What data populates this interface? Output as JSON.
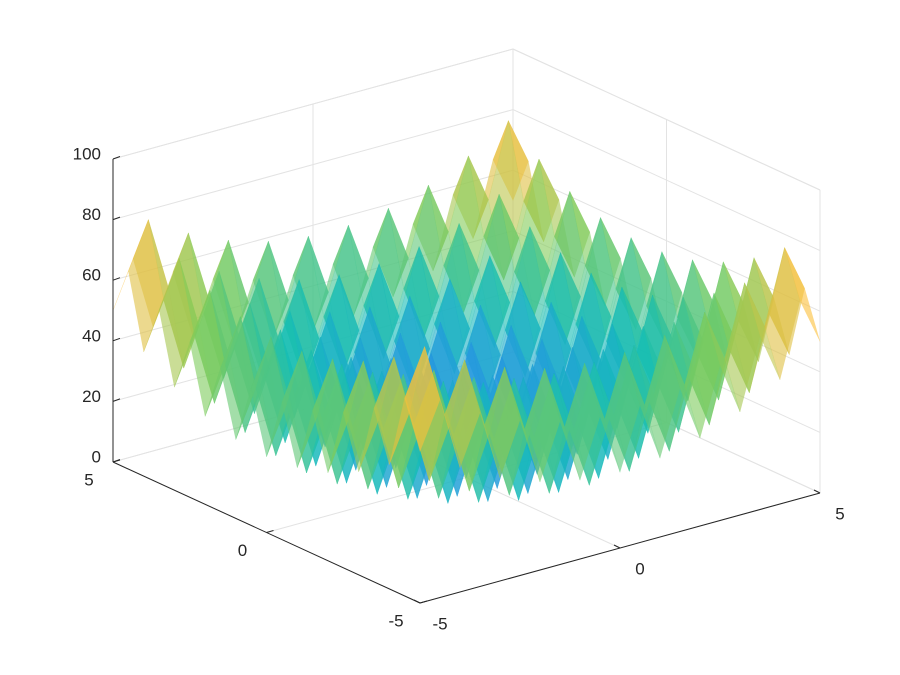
{
  "chart_data": {
    "type": "surface",
    "x": [
      -5,
      -4.5,
      -4,
      -3.5,
      -3,
      -2.5,
      -2,
      -1.5,
      -1,
      -0.5,
      0,
      0.5,
      1,
      1.5,
      2,
      2.5,
      3,
      3.5,
      4,
      4.5,
      5
    ],
    "y": [
      -5,
      -4.5,
      -4,
      -3.5,
      -3,
      -2.5,
      -2,
      -1.5,
      -1,
      -0.5,
      0,
      0.5,
      1,
      1.5,
      2,
      2.5,
      3,
      3.5,
      4,
      4.5,
      5
    ],
    "z": [
      [
        50,
        65.25,
        41,
        57.25,
        34,
        51.25,
        29,
        47.25,
        26,
        45.25,
        25,
        45.25,
        26,
        47.25,
        29,
        51.25,
        34,
        57.25,
        41,
        65.25,
        50
      ],
      [
        65.25,
        80.5,
        56.25,
        72.5,
        49.25,
        66.5,
        44.25,
        62.5,
        41.25,
        60.5,
        40.25,
        60.5,
        41.25,
        62.5,
        44.25,
        66.5,
        49.25,
        72.5,
        56.25,
        80.5,
        65.25
      ],
      [
        41,
        56.25,
        32,
        48.25,
        25,
        42.25,
        20,
        38.25,
        17,
        36.25,
        16,
        36.25,
        17,
        38.25,
        20,
        42.25,
        25,
        48.25,
        32,
        56.25,
        41
      ],
      [
        57.25,
        72.5,
        48.25,
        64.5,
        41.25,
        58.5,
        36.25,
        54.5,
        33.25,
        52.5,
        32.25,
        52.5,
        33.25,
        54.5,
        36.25,
        58.5,
        41.25,
        64.5,
        48.25,
        72.5,
        57.25
      ],
      [
        34,
        49.25,
        25,
        41.25,
        18,
        35.25,
        13,
        31.25,
        10,
        29.25,
        9,
        29.25,
        10,
        31.25,
        13,
        35.25,
        18,
        41.25,
        25,
        49.25,
        34
      ],
      [
        51.25,
        66.5,
        42.25,
        58.5,
        35.25,
        52.5,
        30.25,
        48.5,
        27.25,
        46.5,
        26.25,
        46.5,
        27.25,
        48.5,
        30.25,
        52.5,
        35.25,
        58.5,
        42.25,
        66.5,
        51.25
      ],
      [
        29,
        44.25,
        20,
        36.25,
        13,
        30.25,
        8,
        26.25,
        5,
        24.25,
        4,
        24.25,
        5,
        26.25,
        8,
        30.25,
        13,
        36.25,
        20,
        44.25,
        29
      ],
      [
        47.25,
        62.5,
        38.25,
        54.5,
        31.25,
        48.5,
        26.25,
        44.5,
        23.25,
        42.5,
        22.25,
        42.5,
        23.25,
        44.5,
        26.25,
        48.5,
        31.25,
        54.5,
        38.25,
        62.5,
        47.25
      ],
      [
        26,
        41.25,
        17,
        33.25,
        10,
        27.25,
        5,
        23.25,
        2,
        21.25,
        1,
        21.25,
        2,
        23.25,
        5,
        27.25,
        10,
        33.25,
        17,
        41.25,
        26
      ],
      [
        45.25,
        60.5,
        36.25,
        52.5,
        29.25,
        46.5,
        24.25,
        42.5,
        21.25,
        40.5,
        20.25,
        40.5,
        21.25,
        42.5,
        24.25,
        46.5,
        29.25,
        52.5,
        36.25,
        60.5,
        45.25
      ],
      [
        25,
        40.25,
        16,
        32.25,
        9,
        26.25,
        4,
        22.25,
        1,
        20.25,
        0,
        20.25,
        1,
        22.25,
        4,
        26.25,
        9,
        32.25,
        16,
        40.25,
        25
      ],
      [
        45.25,
        60.5,
        36.25,
        52.5,
        29.25,
        46.5,
        24.25,
        42.5,
        21.25,
        40.5,
        20.25,
        40.5,
        21.25,
        42.5,
        24.25,
        46.5,
        29.25,
        52.5,
        36.25,
        60.5,
        45.25
      ],
      [
        26,
        41.25,
        17,
        33.25,
        10,
        27.25,
        5,
        23.25,
        2,
        21.25,
        1,
        21.25,
        2,
        23.25,
        5,
        27.25,
        10,
        33.25,
        17,
        41.25,
        26
      ],
      [
        47.25,
        62.5,
        38.25,
        54.5,
        31.25,
        48.5,
        26.25,
        44.5,
        23.25,
        42.5,
        22.25,
        42.5,
        23.25,
        44.5,
        26.25,
        48.5,
        31.25,
        54.5,
        38.25,
        62.5,
        47.25
      ],
      [
        29,
        44.25,
        20,
        36.25,
        13,
        30.25,
        8,
        26.25,
        5,
        24.25,
        4,
        24.25,
        5,
        26.25,
        8,
        30.25,
        13,
        36.25,
        20,
        44.25,
        29
      ],
      [
        51.25,
        66.5,
        42.25,
        58.5,
        35.25,
        52.5,
        30.25,
        48.5,
        27.25,
        46.5,
        26.25,
        46.5,
        27.25,
        48.5,
        30.25,
        52.5,
        35.25,
        58.5,
        42.25,
        66.5,
        51.25
      ],
      [
        34,
        49.25,
        25,
        41.25,
        18,
        35.25,
        13,
        31.25,
        10,
        29.25,
        9,
        29.25,
        10,
        31.25,
        13,
        35.25,
        18,
        41.25,
        25,
        49.25,
        34
      ],
      [
        57.25,
        72.5,
        48.25,
        64.5,
        41.25,
        58.5,
        36.25,
        54.5,
        33.25,
        52.5,
        32.25,
        52.5,
        33.25,
        54.5,
        36.25,
        58.5,
        41.25,
        64.5,
        48.25,
        72.5,
        57.25
      ],
      [
        41,
        56.25,
        32,
        48.25,
        25,
        42.25,
        20,
        38.25,
        17,
        36.25,
        16,
        36.25,
        17,
        38.25,
        20,
        42.25,
        25,
        48.25,
        32,
        56.25,
        41
      ],
      [
        65.25,
        80.5,
        56.25,
        72.5,
        49.25,
        66.5,
        44.25,
        62.5,
        41.25,
        60.5,
        40.25,
        60.5,
        41.25,
        62.5,
        44.25,
        66.5,
        49.25,
        72.5,
        56.25,
        80.5,
        65.25
      ],
      [
        50,
        65.25,
        41,
        57.25,
        34,
        51.25,
        29,
        47.25,
        26,
        45.25,
        25,
        45.25,
        26,
        47.25,
        29,
        51.25,
        34,
        57.25,
        41,
        65.25,
        50
      ]
    ],
    "xlim": [
      -5,
      5
    ],
    "ylim": [
      -5,
      5
    ],
    "zlim": [
      0,
      100
    ],
    "xticks": [
      -5,
      0,
      5
    ],
    "yticks": [
      -5,
      0,
      5
    ],
    "zticks": [
      0,
      20,
      40,
      60,
      80,
      100
    ],
    "grid": true,
    "colormap": [
      "#3e26a8",
      "#2d8bee",
      "#14bdb6",
      "#81cc59",
      "#fbbc3c",
      "#f9fb14"
    ],
    "face_alpha": 0.6
  }
}
